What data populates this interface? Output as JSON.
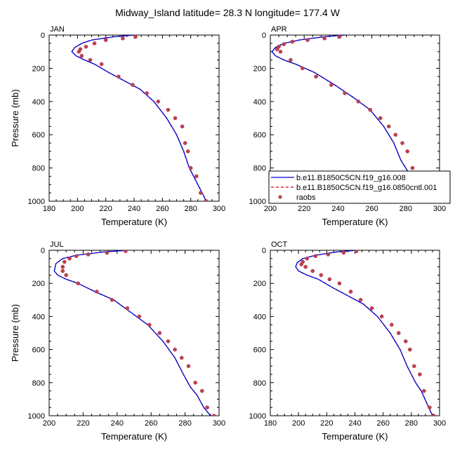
{
  "title": "Midway_Island  latitude= 28.3 N longitude= 177.4 W",
  "legend": {
    "entries": [
      {
        "label": "b.e11.B1850C5CN.f19_g16.008",
        "color": "#0000cc",
        "style": "solid"
      },
      {
        "label": "b.e11.B1850C5CN.f19_g16.0850cntl.001",
        "color": "#cc0000",
        "style": "dashed"
      },
      {
        "label": "raobs",
        "color": "#c0404f",
        "style": "marker"
      }
    ]
  },
  "chart_data": [
    {
      "type": "line",
      "panel": "JAN",
      "xlabel": "Temperature (K)",
      "ylabel": "Pressure (mb)",
      "xlim": [
        180,
        300
      ],
      "ylim": [
        1000,
        0
      ],
      "xticks": [
        180,
        200,
        220,
        240,
        260,
        280,
        300
      ],
      "yticks": [
        0,
        200,
        400,
        600,
        800,
        1000
      ],
      "grid": false,
      "series": [
        {
          "name": "b.e11.B1850C5CN.f19_g16.008",
          "x": [
            240,
            226,
            210,
            203,
            198,
            196,
            199,
            205,
            212,
            222,
            233,
            244,
            254,
            263,
            270,
            275,
            277,
            279,
            282,
            285,
            288,
            291
          ],
          "y": [
            0,
            10,
            30,
            50,
            75,
            100,
            125,
            150,
            175,
            225,
            275,
            325,
            400,
            500,
            600,
            700,
            750,
            800,
            850,
            900,
            950,
            1000
          ]
        },
        {
          "name": "b.e11.B1850C5CN.f19_g16.0850cntl.001",
          "x": [
            240,
            226,
            210,
            203,
            198,
            196,
            199,
            205,
            212,
            222,
            233,
            244,
            254,
            263,
            270,
            275,
            277,
            279,
            282,
            285,
            288,
            291
          ],
          "y": [
            0,
            10,
            30,
            50,
            75,
            100,
            125,
            150,
            175,
            225,
            275,
            325,
            400,
            500,
            600,
            700,
            750,
            800,
            850,
            900,
            950,
            1000
          ]
        },
        {
          "name": "raobs",
          "x": [
            241,
            232,
            220,
            212,
            206,
            202,
            201,
            203,
            209,
            217,
            229,
            239,
            249,
            257,
            264,
            269,
            274,
            276,
            278,
            280,
            284,
            287,
            291
          ],
          "y": [
            10,
            20,
            30,
            50,
            70,
            85,
            100,
            125,
            150,
            175,
            250,
            300,
            350,
            400,
            450,
            500,
            550,
            650,
            700,
            800,
            850,
            950,
            1000
          ]
        }
      ]
    },
    {
      "type": "line",
      "panel": "APR",
      "xlabel": "Temperature (K)",
      "ylabel": "",
      "xlim": [
        200,
        300
      ],
      "ylim": [
        1000,
        0
      ],
      "xticks": [
        200,
        220,
        240,
        260,
        280,
        300
      ],
      "yticks": [
        0,
        200,
        400,
        600,
        800,
        1000
      ],
      "grid": false,
      "series": [
        {
          "name": "b.e11.B1850C5CN.f19_g16.008",
          "x": [
            244,
            232,
            217,
            208,
            203,
            201,
            203,
            208,
            215,
            226,
            238,
            249,
            259,
            267,
            273,
            277,
            280,
            283,
            287,
            291
          ],
          "y": [
            0,
            10,
            30,
            50,
            75,
            100,
            125,
            150,
            175,
            225,
            300,
            375,
            450,
            550,
            650,
            750,
            800,
            850,
            925,
            1000
          ]
        },
        {
          "name": "b.e11.B1850C5CN.f19_g16.0850cntl.001",
          "x": [
            244,
            232,
            217,
            208,
            203,
            201,
            203,
            208,
            215,
            226,
            238,
            249,
            259,
            267,
            273,
            277,
            280,
            283,
            287,
            291
          ],
          "y": [
            0,
            10,
            30,
            50,
            75,
            100,
            125,
            150,
            175,
            225,
            300,
            375,
            450,
            550,
            650,
            750,
            800,
            850,
            925,
            1000
          ]
        },
        {
          "name": "raobs",
          "x": [
            241,
            232,
            222,
            213,
            208,
            205,
            204,
            206,
            212,
            219,
            227,
            236,
            244,
            252,
            259,
            265,
            270,
            274,
            278,
            281,
            284,
            287,
            291
          ],
          "y": [
            10,
            20,
            30,
            40,
            55,
            70,
            85,
            100,
            150,
            200,
            250,
            300,
            350,
            400,
            450,
            500,
            550,
            600,
            650,
            700,
            800,
            900,
            1000
          ]
        }
      ]
    },
    {
      "type": "line",
      "panel": "JUL",
      "xlabel": "Temperature (K)",
      "ylabel": "Pressure (mb)",
      "xlim": [
        200,
        300
      ],
      "ylim": [
        1000,
        0
      ],
      "xticks": [
        200,
        220,
        240,
        260,
        280,
        300
      ],
      "yticks": [
        0,
        200,
        400,
        600,
        800,
        1000
      ],
      "grid": false,
      "series": [
        {
          "name": "b.e11.B1850C5CN.f19_g16.008",
          "x": [
            246,
            232,
            216,
            208,
            204,
            203,
            205,
            210,
            217,
            227,
            238,
            248,
            258,
            267,
            274,
            279,
            283,
            287,
            291,
            295
          ],
          "y": [
            0,
            10,
            30,
            50,
            80,
            125,
            150,
            175,
            200,
            250,
            300,
            375,
            450,
            550,
            650,
            750,
            825,
            875,
            950,
            1000
          ]
        },
        {
          "name": "b.e11.B1850C5CN.f19_g16.0850cntl.001",
          "x": [
            246,
            232,
            216,
            208,
            204,
            203,
            205,
            210,
            217,
            227,
            238,
            248,
            258,
            267,
            274,
            279,
            283,
            287,
            291,
            295
          ],
          "y": [
            0,
            10,
            30,
            50,
            80,
            125,
            150,
            175,
            200,
            250,
            300,
            375,
            450,
            550,
            650,
            750,
            825,
            875,
            950,
            1000
          ]
        },
        {
          "name": "raobs",
          "x": [
            245,
            234,
            223,
            216,
            212,
            209,
            208,
            208,
            210,
            217,
            228,
            237,
            246,
            253,
            259,
            265,
            270,
            274,
            278,
            282,
            286,
            290,
            293,
            297
          ],
          "y": [
            5,
            15,
            25,
            35,
            50,
            70,
            100,
            125,
            150,
            200,
            250,
            300,
            350,
            400,
            450,
            500,
            550,
            600,
            650,
            700,
            800,
            850,
            950,
            1000
          ]
        }
      ]
    },
    {
      "type": "line",
      "panel": "OCT",
      "xlabel": "Temperature (K)",
      "ylabel": "",
      "xlim": [
        180,
        300
      ],
      "ylim": [
        1000,
        0
      ],
      "xticks": [
        180,
        200,
        220,
        240,
        260,
        280,
        300
      ],
      "yticks": [
        0,
        200,
        400,
        600,
        800,
        1000
      ],
      "grid": false,
      "series": [
        {
          "name": "b.e11.B1850C5CN.f19_g16.008",
          "x": [
            241,
            227,
            212,
            203,
            199,
            198,
            200,
            206,
            214,
            224,
            235,
            246,
            256,
            265,
            272,
            277,
            280,
            283,
            287,
            291,
            295
          ],
          "y": [
            0,
            10,
            30,
            50,
            75,
            100,
            125,
            150,
            175,
            225,
            275,
            325,
            400,
            500,
            600,
            700,
            750,
            800,
            850,
            925,
            1000
          ]
        },
        {
          "name": "b.e11.B1850C5CN.f19_g16.0850cntl.001",
          "x": [
            241,
            227,
            212,
            203,
            199,
            198,
            200,
            206,
            214,
            224,
            235,
            246,
            256,
            265,
            272,
            277,
            280,
            283,
            287,
            291,
            295
          ],
          "y": [
            0,
            10,
            30,
            50,
            75,
            100,
            125,
            150,
            175,
            225,
            275,
            325,
            400,
            500,
            600,
            700,
            750,
            800,
            850,
            925,
            1000
          ]
        },
        {
          "name": "raobs",
          "x": [
            241,
            232,
            221,
            212,
            206,
            203,
            202,
            205,
            210,
            216,
            222,
            229,
            237,
            244,
            252,
            259,
            266,
            271,
            276,
            279,
            282,
            286,
            289,
            293,
            296
          ],
          "y": [
            5,
            15,
            25,
            35,
            50,
            70,
            85,
            100,
            125,
            150,
            175,
            200,
            250,
            300,
            350,
            400,
            450,
            500,
            550,
            600,
            700,
            750,
            850,
            950,
            1000
          ]
        }
      ]
    }
  ]
}
